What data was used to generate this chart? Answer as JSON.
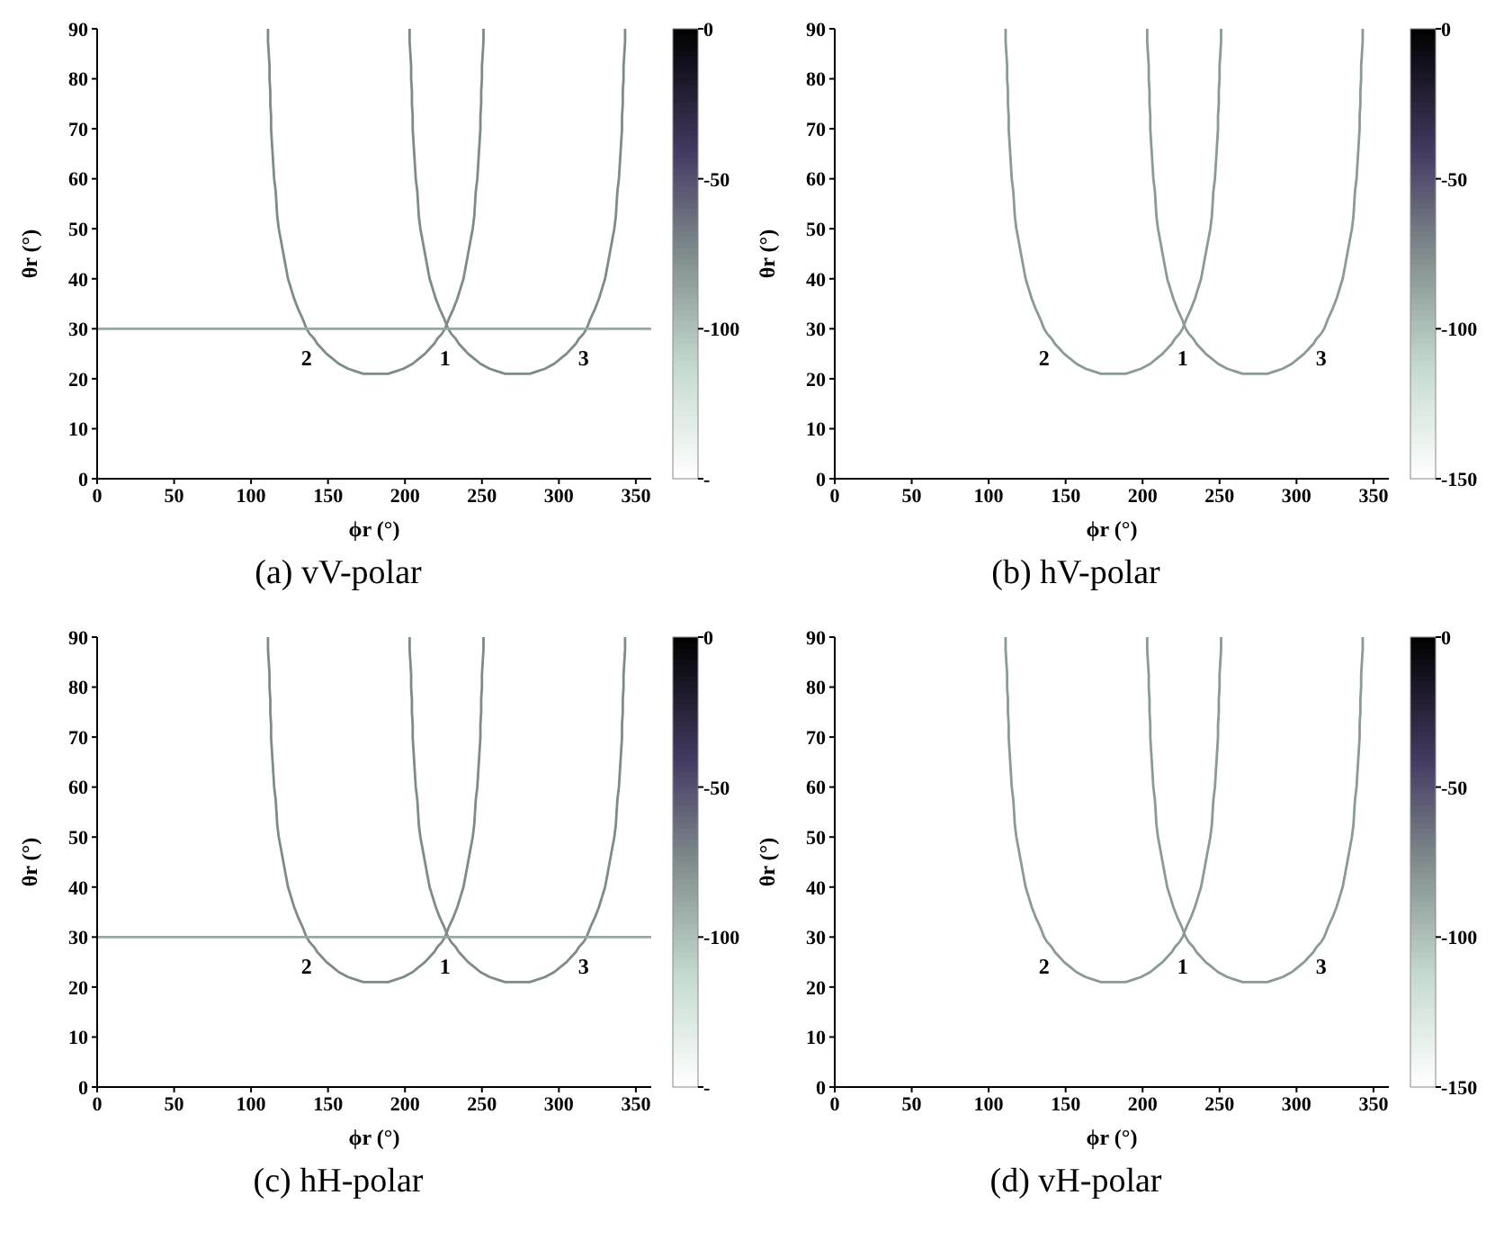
{
  "chart_data": [
    {
      "type": "line",
      "title": "(a) vV-polar",
      "xlabel": "ϕr (°)",
      "ylabel": "θr (°)",
      "xlim": [
        0,
        360
      ],
      "xticks": [
        0,
        50,
        100,
        150,
        200,
        250,
        300,
        350
      ],
      "ylim": [
        0,
        90
      ],
      "yticks": [
        0,
        10,
        20,
        30,
        40,
        50,
        60,
        70,
        80,
        90
      ],
      "clim": [
        -150,
        0
      ],
      "cticks": [
        0,
        -50,
        -100,
        {
          "value": -150,
          "label": "-"
        }
      ],
      "marker": "none",
      "annotations": [
        {
          "text": "2",
          "x": 136,
          "y": 30
        },
        {
          "text": "1",
          "x": 226,
          "y": 30
        },
        {
          "text": "3",
          "x": 316,
          "y": 30
        }
      ],
      "series": [
        {
          "color": "#7d8c88",
          "x": [
            111,
            111,
            111.5,
            112,
            112,
            112.5,
            112.5,
            113,
            113,
            113.5,
            114,
            114.5,
            115,
            116,
            116.5,
            117,
            118,
            119.5,
            121,
            122.5,
            124,
            126,
            128,
            130.5,
            133.5,
            136,
            138,
            141,
            143,
            146,
            149,
            153,
            157,
            163,
            168,
            173,
            181,
            189,
            194,
            199,
            205,
            209,
            213,
            216,
            219,
            221,
            224,
            226,
            228.5,
            231.5,
            234,
            236,
            238,
            239.5,
            241,
            242.5,
            244,
            245,
            245.5,
            246,
            247,
            247.5,
            248,
            248.5,
            249,
            249,
            249.5,
            249.5,
            250,
            250,
            250.5,
            251,
            251
          ],
          "values": [
            90,
            87.5,
            85,
            82.5,
            80,
            77.5,
            75,
            72.5,
            70,
            67.5,
            65,
            62.5,
            60,
            57.5,
            55,
            52.5,
            50,
            47.5,
            45,
            42.5,
            40,
            38,
            36,
            34,
            32,
            30,
            29,
            28,
            27,
            26,
            25,
            24,
            23,
            22,
            21.5,
            21,
            21,
            21,
            21.5,
            22,
            23,
            24,
            25,
            26,
            27,
            28,
            29,
            30,
            32,
            34,
            36,
            38,
            40,
            42.5,
            45,
            47.5,
            50,
            52.5,
            55,
            57.5,
            60,
            62.5,
            65,
            67.5,
            70,
            72.5,
            75,
            77.5,
            80,
            82.5,
            85,
            87.5,
            90
          ]
        },
        {
          "color": "#7d8c88",
          "x": [
            203,
            203,
            203.5,
            204,
            204,
            204.5,
            204.5,
            205,
            205,
            205.5,
            206,
            206.5,
            207,
            208,
            208.5,
            209,
            210,
            211.5,
            213,
            214.5,
            216,
            218,
            220,
            222.5,
            225.5,
            228,
            230,
            233,
            235,
            238,
            241,
            245,
            249,
            255,
            260,
            265,
            273,
            281,
            286,
            291,
            297,
            301,
            305,
            308,
            311,
            313,
            316,
            318,
            320.5,
            323.5,
            326,
            328,
            330,
            331.5,
            333,
            334.5,
            336,
            337,
            337.5,
            338,
            339,
            339.5,
            340,
            340.5,
            341,
            341,
            341.5,
            341.5,
            342,
            342,
            342.5,
            343,
            343
          ],
          "values": [
            90,
            87.5,
            85,
            82.5,
            80,
            77.5,
            75,
            72.5,
            70,
            67.5,
            65,
            62.5,
            60,
            57.5,
            55,
            52.5,
            50,
            47.5,
            45,
            42.5,
            40,
            38,
            36,
            34,
            32,
            30,
            29,
            28,
            27,
            26,
            25,
            24,
            23,
            22,
            21.5,
            21,
            21,
            21,
            21.5,
            22,
            23,
            24,
            25,
            26,
            27,
            28,
            29,
            30,
            32,
            34,
            36,
            38,
            40,
            42.5,
            45,
            47.5,
            50,
            52.5,
            55,
            57.5,
            60,
            62.5,
            65,
            67.5,
            70,
            72.5,
            75,
            77.5,
            80,
            82.5,
            85,
            87.5,
            90
          ]
        },
        {
          "color": "#97a8a1",
          "x": [
            0,
            5,
            10,
            15,
            20,
            25,
            30,
            35,
            40,
            45,
            50,
            55,
            60,
            65,
            70,
            75,
            80,
            85,
            90,
            95,
            100,
            105,
            110,
            115,
            120,
            125,
            130,
            135,
            140,
            145,
            150,
            155,
            160,
            165,
            170,
            175,
            180,
            185,
            190,
            195,
            200,
            205,
            210,
            215,
            220,
            225,
            230,
            235,
            240,
            245,
            250,
            255,
            260,
            265,
            270,
            275,
            280,
            285,
            290,
            295,
            300,
            305,
            310,
            315,
            320,
            325,
            330,
            335,
            340,
            345,
            350,
            355,
            360
          ],
          "values": [
            30,
            30,
            30,
            30,
            30,
            30,
            30,
            30,
            30,
            30,
            30,
            30,
            30,
            30,
            30,
            30,
            30,
            30,
            30,
            30,
            30,
            30,
            30,
            30,
            30,
            30,
            30,
            30,
            30,
            30,
            30,
            30,
            30,
            30,
            30,
            30,
            30,
            30,
            30,
            30,
            30,
            30,
            30,
            30,
            30,
            30,
            30,
            30,
            30,
            30,
            30,
            30,
            30,
            30,
            30,
            30,
            30,
            30,
            30,
            30,
            30,
            30,
            30,
            30,
            30,
            30,
            30,
            30,
            30,
            30,
            30,
            30,
            30
          ]
        }
      ]
    },
    {
      "type": "line",
      "title": "(b) hV-polar",
      "xlabel": "ϕr (°)",
      "ylabel": "θr (°)",
      "xlim": [
        0,
        360
      ],
      "xticks": [
        0,
        50,
        100,
        150,
        200,
        250,
        300,
        350
      ],
      "ylim": [
        0,
        90
      ],
      "yticks": [
        0,
        10,
        20,
        30,
        40,
        50,
        60,
        70,
        80,
        90
      ],
      "clim": [
        -150,
        0
      ],
      "cticks": [
        0,
        -50,
        -100,
        -150
      ],
      "marker": "none",
      "annotations": [
        {
          "text": "2",
          "x": 136,
          "y": 30
        },
        {
          "text": "1",
          "x": 226,
          "y": 30
        },
        {
          "text": "3",
          "x": 316,
          "y": 30
        }
      ],
      "series": [
        {
          "color": "#8a9a95",
          "x": [
            111,
            111,
            111.5,
            112,
            112,
            112.5,
            112.5,
            113,
            113,
            113.5,
            114,
            114.5,
            115,
            116,
            116.5,
            117,
            118,
            119.5,
            121,
            122.5,
            124,
            126,
            128,
            130.5,
            133.5,
            136,
            138,
            141,
            143,
            146,
            149,
            153,
            157,
            163,
            168,
            173,
            181,
            189,
            194,
            199,
            205,
            209,
            213,
            216,
            219,
            221,
            224,
            226,
            228.5,
            231.5,
            234,
            236,
            238,
            239.5,
            241,
            242.5,
            244,
            245,
            245.5,
            246,
            247,
            247.5,
            248,
            248.5,
            249,
            249,
            249.5,
            249.5,
            250,
            250,
            250.5,
            251,
            251
          ],
          "values": [
            90,
            87.5,
            85,
            82.5,
            80,
            77.5,
            75,
            72.5,
            70,
            67.5,
            65,
            62.5,
            60,
            57.5,
            55,
            52.5,
            50,
            47.5,
            45,
            42.5,
            40,
            38,
            36,
            34,
            32,
            30,
            29,
            28,
            27,
            26,
            25,
            24,
            23,
            22,
            21.5,
            21,
            21,
            21,
            21.5,
            22,
            23,
            24,
            25,
            26,
            27,
            28,
            29,
            30,
            32,
            34,
            36,
            38,
            40,
            42.5,
            45,
            47.5,
            50,
            52.5,
            55,
            57.5,
            60,
            62.5,
            65,
            67.5,
            70,
            72.5,
            75,
            77.5,
            80,
            82.5,
            85,
            87.5,
            90
          ]
        },
        {
          "color": "#8a9a95",
          "x": [
            203,
            203,
            203.5,
            204,
            204,
            204.5,
            204.5,
            205,
            205,
            205.5,
            206,
            206.5,
            207,
            208,
            208.5,
            209,
            210,
            211.5,
            213,
            214.5,
            216,
            218,
            220,
            222.5,
            225.5,
            228,
            230,
            233,
            235,
            238,
            241,
            245,
            249,
            255,
            260,
            265,
            273,
            281,
            286,
            291,
            297,
            301,
            305,
            308,
            311,
            313,
            316,
            318,
            320.5,
            323.5,
            326,
            328,
            330,
            331.5,
            333,
            334.5,
            336,
            337,
            337.5,
            338,
            339,
            339.5,
            340,
            340.5,
            341,
            341,
            341.5,
            341.5,
            342,
            342,
            342.5,
            343,
            343
          ],
          "values": [
            90,
            87.5,
            85,
            82.5,
            80,
            77.5,
            75,
            72.5,
            70,
            67.5,
            65,
            62.5,
            60,
            57.5,
            55,
            52.5,
            50,
            47.5,
            45,
            42.5,
            40,
            38,
            36,
            34,
            32,
            30,
            29,
            28,
            27,
            26,
            25,
            24,
            23,
            22,
            21.5,
            21,
            21,
            21,
            21.5,
            22,
            23,
            24,
            25,
            26,
            27,
            28,
            29,
            30,
            32,
            34,
            36,
            38,
            40,
            42.5,
            45,
            47.5,
            50,
            52.5,
            55,
            57.5,
            60,
            62.5,
            65,
            67.5,
            70,
            72.5,
            75,
            77.5,
            80,
            82.5,
            85,
            87.5,
            90
          ]
        }
      ]
    },
    {
      "type": "line",
      "title": "(c) hH-polar",
      "xlabel": "ϕr (°)",
      "ylabel": "θr (°)",
      "xlim": [
        0,
        360
      ],
      "xticks": [
        0,
        50,
        100,
        150,
        200,
        250,
        300,
        350
      ],
      "ylim": [
        0,
        90
      ],
      "yticks": [
        0,
        10,
        20,
        30,
        40,
        50,
        60,
        70,
        80,
        90
      ],
      "clim": [
        -150,
        0
      ],
      "cticks": [
        0,
        -50,
        -100,
        {
          "value": -150,
          "label": "-"
        }
      ],
      "marker": "none",
      "annotations": [
        {
          "text": "2",
          "x": 136,
          "y": 30
        },
        {
          "text": "1",
          "x": 226,
          "y": 30
        },
        {
          "text": "3",
          "x": 316,
          "y": 30
        }
      ],
      "series": [
        {
          "color": "#7d8c88",
          "x": [
            111,
            111,
            111.5,
            112,
            112,
            112.5,
            112.5,
            113,
            113,
            113.5,
            114,
            114.5,
            115,
            116,
            116.5,
            117,
            118,
            119.5,
            121,
            122.5,
            124,
            126,
            128,
            130.5,
            133.5,
            136,
            138,
            141,
            143,
            146,
            149,
            153,
            157,
            163,
            168,
            173,
            181,
            189,
            194,
            199,
            205,
            209,
            213,
            216,
            219,
            221,
            224,
            226,
            228.5,
            231.5,
            234,
            236,
            238,
            239.5,
            241,
            242.5,
            244,
            245,
            245.5,
            246,
            247,
            247.5,
            248,
            248.5,
            249,
            249,
            249.5,
            249.5,
            250,
            250,
            250.5,
            251,
            251
          ],
          "values": [
            90,
            87.5,
            85,
            82.5,
            80,
            77.5,
            75,
            72.5,
            70,
            67.5,
            65,
            62.5,
            60,
            57.5,
            55,
            52.5,
            50,
            47.5,
            45,
            42.5,
            40,
            38,
            36,
            34,
            32,
            30,
            29,
            28,
            27,
            26,
            25,
            24,
            23,
            22,
            21.5,
            21,
            21,
            21,
            21.5,
            22,
            23,
            24,
            25,
            26,
            27,
            28,
            29,
            30,
            32,
            34,
            36,
            38,
            40,
            42.5,
            45,
            47.5,
            50,
            52.5,
            55,
            57.5,
            60,
            62.5,
            65,
            67.5,
            70,
            72.5,
            75,
            77.5,
            80,
            82.5,
            85,
            87.5,
            90
          ]
        },
        {
          "color": "#7d8c88",
          "x": [
            203,
            203,
            203.5,
            204,
            204,
            204.5,
            204.5,
            205,
            205,
            205.5,
            206,
            206.5,
            207,
            208,
            208.5,
            209,
            210,
            211.5,
            213,
            214.5,
            216,
            218,
            220,
            222.5,
            225.5,
            228,
            230,
            233,
            235,
            238,
            241,
            245,
            249,
            255,
            260,
            265,
            273,
            281,
            286,
            291,
            297,
            301,
            305,
            308,
            311,
            313,
            316,
            318,
            320.5,
            323.5,
            326,
            328,
            330,
            331.5,
            333,
            334.5,
            336,
            337,
            337.5,
            338,
            339,
            339.5,
            340,
            340.5,
            341,
            341,
            341.5,
            341.5,
            342,
            342,
            342.5,
            343,
            343
          ],
          "values": [
            90,
            87.5,
            85,
            82.5,
            80,
            77.5,
            75,
            72.5,
            70,
            67.5,
            65,
            62.5,
            60,
            57.5,
            55,
            52.5,
            50,
            47.5,
            45,
            42.5,
            40,
            38,
            36,
            34,
            32,
            30,
            29,
            28,
            27,
            26,
            25,
            24,
            23,
            22,
            21.5,
            21,
            21,
            21,
            21.5,
            22,
            23,
            24,
            25,
            26,
            27,
            28,
            29,
            30,
            32,
            34,
            36,
            38,
            40,
            42.5,
            45,
            47.5,
            50,
            52.5,
            55,
            57.5,
            60,
            62.5,
            65,
            67.5,
            70,
            72.5,
            75,
            77.5,
            80,
            82.5,
            85,
            87.5,
            90
          ]
        },
        {
          "color": "#97a8a1",
          "x": [
            0,
            5,
            10,
            15,
            20,
            25,
            30,
            35,
            40,
            45,
            50,
            55,
            60,
            65,
            70,
            75,
            80,
            85,
            90,
            95,
            100,
            105,
            110,
            115,
            120,
            125,
            130,
            135,
            140,
            145,
            150,
            155,
            160,
            165,
            170,
            175,
            180,
            185,
            190,
            195,
            200,
            205,
            210,
            215,
            220,
            225,
            230,
            235,
            240,
            245,
            250,
            255,
            260,
            265,
            270,
            275,
            280,
            285,
            290,
            295,
            300,
            305,
            310,
            315,
            320,
            325,
            330,
            335,
            340,
            345,
            350,
            355,
            360
          ],
          "values": [
            30,
            30,
            30,
            30,
            30,
            30,
            30,
            30,
            30,
            30,
            30,
            30,
            30,
            30,
            30,
            30,
            30,
            30,
            30,
            30,
            30,
            30,
            30,
            30,
            30,
            30,
            30,
            30,
            30,
            30,
            30,
            30,
            30,
            30,
            30,
            30,
            30,
            30,
            30,
            30,
            30,
            30,
            30,
            30,
            30,
            30,
            30,
            30,
            30,
            30,
            30,
            30,
            30,
            30,
            30,
            30,
            30,
            30,
            30,
            30,
            30,
            30,
            30,
            30,
            30,
            30,
            30,
            30,
            30,
            30,
            30,
            30,
            30
          ]
        }
      ]
    },
    {
      "type": "line",
      "title": "(d) vH-polar",
      "xlabel": "ϕr (°)",
      "ylabel": "θr (°)",
      "xlim": [
        0,
        360
      ],
      "xticks": [
        0,
        50,
        100,
        150,
        200,
        250,
        300,
        350
      ],
      "ylim": [
        0,
        90
      ],
      "yticks": [
        0,
        10,
        20,
        30,
        40,
        50,
        60,
        70,
        80,
        90
      ],
      "clim": [
        -150,
        0
      ],
      "cticks": [
        0,
        -50,
        -100,
        -150
      ],
      "marker": "none",
      "annotations": [
        {
          "text": "2",
          "x": 136,
          "y": 30
        },
        {
          "text": "1",
          "x": 226,
          "y": 30
        },
        {
          "text": "3",
          "x": 316,
          "y": 30
        }
      ],
      "series": [
        {
          "color": "#8a9a95",
          "x": [
            111,
            111,
            111.5,
            112,
            112,
            112.5,
            112.5,
            113,
            113,
            113.5,
            114,
            114.5,
            115,
            116,
            116.5,
            117,
            118,
            119.5,
            121,
            122.5,
            124,
            126,
            128,
            130.5,
            133.5,
            136,
            138,
            141,
            143,
            146,
            149,
            153,
            157,
            163,
            168,
            173,
            181,
            189,
            194,
            199,
            205,
            209,
            213,
            216,
            219,
            221,
            224,
            226,
            228.5,
            231.5,
            234,
            236,
            238,
            239.5,
            241,
            242.5,
            244,
            245,
            245.5,
            246,
            247,
            247.5,
            248,
            248.5,
            249,
            249,
            249.5,
            249.5,
            250,
            250,
            250.5,
            251,
            251
          ],
          "values": [
            90,
            87.5,
            85,
            82.5,
            80,
            77.5,
            75,
            72.5,
            70,
            67.5,
            65,
            62.5,
            60,
            57.5,
            55,
            52.5,
            50,
            47.5,
            45,
            42.5,
            40,
            38,
            36,
            34,
            32,
            30,
            29,
            28,
            27,
            26,
            25,
            24,
            23,
            22,
            21.5,
            21,
            21,
            21,
            21.5,
            22,
            23,
            24,
            25,
            26,
            27,
            28,
            29,
            30,
            32,
            34,
            36,
            38,
            40,
            42.5,
            45,
            47.5,
            50,
            52.5,
            55,
            57.5,
            60,
            62.5,
            65,
            67.5,
            70,
            72.5,
            75,
            77.5,
            80,
            82.5,
            85,
            87.5,
            90
          ]
        },
        {
          "color": "#8a9a95",
          "x": [
            203,
            203,
            203.5,
            204,
            204,
            204.5,
            204.5,
            205,
            205,
            205.5,
            206,
            206.5,
            207,
            208,
            208.5,
            209,
            210,
            211.5,
            213,
            214.5,
            216,
            218,
            220,
            222.5,
            225.5,
            228,
            230,
            233,
            235,
            238,
            241,
            245,
            249,
            255,
            260,
            265,
            273,
            281,
            286,
            291,
            297,
            301,
            305,
            308,
            311,
            313,
            316,
            318,
            320.5,
            323.5,
            326,
            328,
            330,
            331.5,
            333,
            334.5,
            336,
            337,
            337.5,
            338,
            339,
            339.5,
            340,
            340.5,
            341,
            341,
            341.5,
            341.5,
            342,
            342,
            342.5,
            343,
            343
          ],
          "values": [
            90,
            87.5,
            85,
            82.5,
            80,
            77.5,
            75,
            72.5,
            70,
            67.5,
            65,
            62.5,
            60,
            57.5,
            55,
            52.5,
            50,
            47.5,
            45,
            42.5,
            40,
            38,
            36,
            34,
            32,
            30,
            29,
            28,
            27,
            26,
            25,
            24,
            23,
            22,
            21.5,
            21,
            21,
            21,
            21.5,
            22,
            23,
            24,
            25,
            26,
            27,
            28,
            29,
            30,
            32,
            34,
            36,
            38,
            40,
            42.5,
            45,
            47.5,
            50,
            52.5,
            55,
            57.5,
            60,
            62.5,
            65,
            67.5,
            70,
            72.5,
            75,
            77.5,
            80,
            82.5,
            85,
            87.5,
            90
          ]
        }
      ]
    }
  ]
}
